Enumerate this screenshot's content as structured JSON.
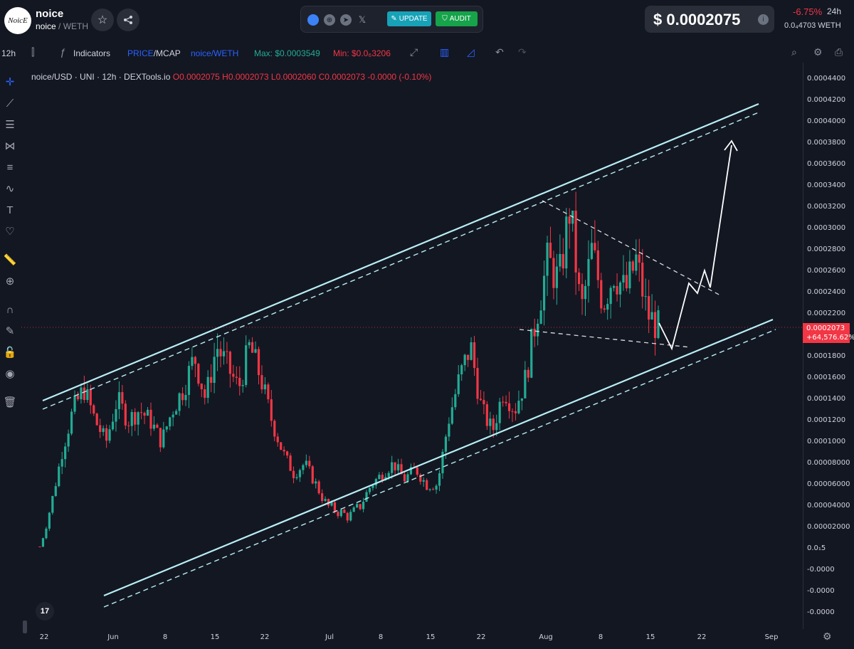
{
  "header": {
    "logo_text": "NoicE",
    "token_name": "noice",
    "pair_base": "noice",
    "pair_quote": "/ WETH",
    "update_label": "UPDATE",
    "audit_label": "AUDIT",
    "price": "$ 0.0002075",
    "change": "-6.75%",
    "change_period": "24h",
    "weth_price": "0.0₄4703  WETH",
    "social_icons": [
      "globe-icon",
      "telegram-icon",
      "x-icon"
    ]
  },
  "toolbar": {
    "interval": "12h",
    "indicators_label": "Indicators",
    "price_mcap_price": "PRICE",
    "price_mcap_sep": "/",
    "price_mcap_mcap": "MCAP",
    "pair_label": "noice/WETH",
    "max_label": "Max: $0.0003549",
    "min_label": "Min: $0.0₆3206"
  },
  "legend": {
    "symbol": "noice/USD · UNI · 12h · DEXTools.io",
    "open": "O0.0002075",
    "high": "H0.0002073",
    "low": "L0.0002060",
    "close": "C0.0002073",
    "change": "-0.0000 (-0.10%)"
  },
  "price_tag": {
    "price": "0.0002073",
    "pct": "+64,576.62%"
  },
  "colors": {
    "up": "#22ab94",
    "down": "#f23645",
    "background": "#131722",
    "channel_line": "#b8eef5",
    "accent": "#2962ff"
  },
  "chart_data": {
    "type": "candlestick",
    "symbol": "noice/USD",
    "interval": "12h",
    "y_axis_ticks": [
      "0.0004400",
      "0.0004200",
      "0.0004000",
      "0.0003800",
      "0.0003600",
      "0.0003400",
      "0.0003200",
      "0.0003000",
      "0.0002800",
      "0.0002600",
      "0.0002400",
      "0.0002200",
      "0.0002000",
      "0.0001800",
      "0.0001600",
      "0.0001400",
      "0.0001200",
      "0.0001000",
      "0.00008000",
      "0.00006000",
      "0.00004000",
      "0.00002000",
      "0.0₁5",
      "-0.0000",
      "-0.0000",
      "-0.0000"
    ],
    "x_axis_ticks": [
      "22",
      "Jun",
      "8",
      "15",
      "22",
      "Jul",
      "8",
      "15",
      "22",
      "Aug",
      "8",
      "15",
      "22",
      "Sep"
    ],
    "ylim": [
      -6e-05,
      0.00044
    ],
    "close_series_approx": [
      2e-06,
      4e-05,
      9e-05,
      0.00013,
      0.00015,
      0.00012,
      0.0001,
      0.00014,
      0.00012,
      0.00013,
      0.00012,
      0.0001,
      0.00013,
      0.00015,
      0.00018,
      0.00014,
      0.00019,
      0.00017,
      0.00015,
      0.00019,
      0.00016,
      0.00012,
      9e-05,
      7e-05,
      8e-05,
      6e-05,
      4e-05,
      3.5e-05,
      3e-05,
      4e-05,
      6e-05,
      7e-05,
      8e-05,
      6.5e-05,
      7.5e-05,
      6e-05,
      6e-05,
      0.00012,
      0.00016,
      0.00019,
      0.00013,
      0.00011,
      0.00015,
      0.00013,
      0.00016,
      0.00022,
      0.00027,
      0.00025,
      0.00032,
      0.00022,
      0.00028,
      0.00023,
      0.00026,
      0.00024,
      0.00027,
      0.00022,
      0.0002073
    ],
    "last_price": 0.0002073,
    "projection_target": 0.00038
  }
}
